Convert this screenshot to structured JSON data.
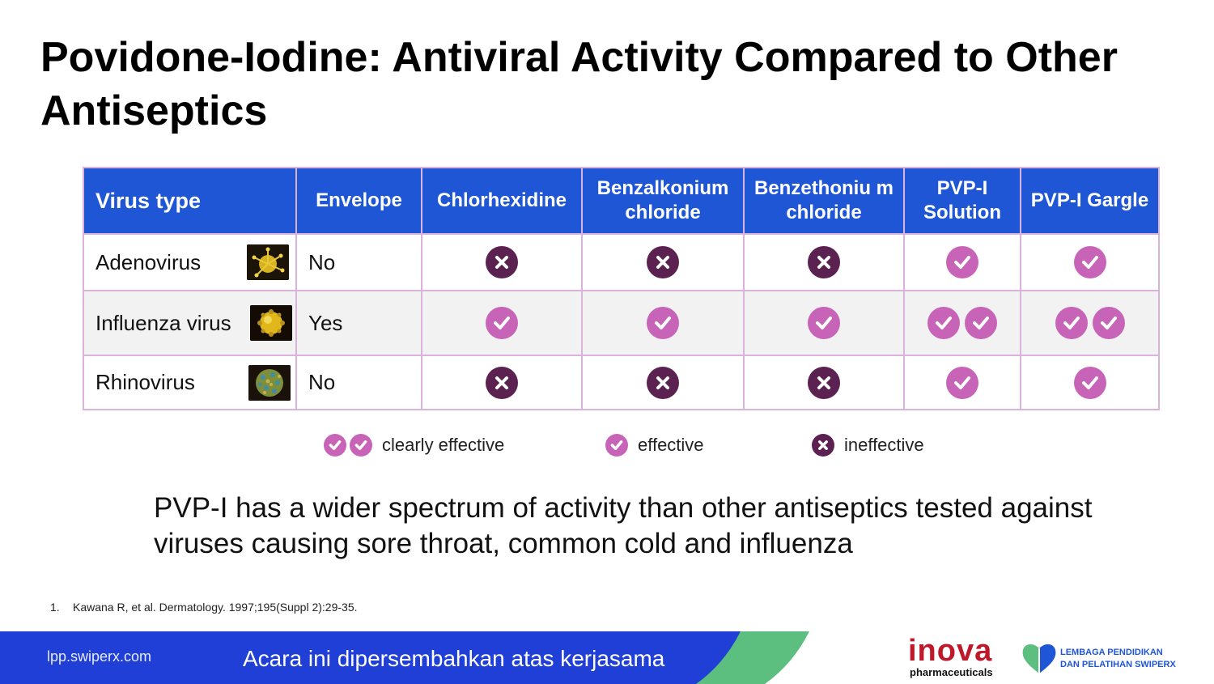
{
  "title": "Povidone-Iodine: Antiviral Activity Compared to Other Antiseptics",
  "table": {
    "headers": [
      "Virus type",
      "Envelope",
      "Chlorhexidine",
      "Benzalkonium chloride",
      "Benzethoniu m chloride",
      "PVP-I Solution",
      "PVP-I Gargle"
    ],
    "rows": [
      {
        "virus": "Adenovirus",
        "image_icon": "adenovirus-image",
        "envelope": "No",
        "results": [
          "ineffective",
          "ineffective",
          "ineffective",
          "effective",
          "effective"
        ]
      },
      {
        "virus": "Influenza virus",
        "image_icon": "influenza-virus-image",
        "envelope": "Yes",
        "results": [
          "effective",
          "effective",
          "effective",
          "clearly effective",
          "clearly effective"
        ]
      },
      {
        "virus": "Rhinovirus",
        "image_icon": "rhinovirus-image",
        "envelope": "No",
        "results": [
          "ineffective",
          "ineffective",
          "ineffective",
          "effective",
          "effective"
        ]
      }
    ]
  },
  "legend": {
    "clearly_effective": "clearly effective",
    "effective": "effective",
    "ineffective": "ineffective"
  },
  "summary": "PVP-I has a wider spectrum of activity than other antiseptics tested against viruses causing sore throat, common cold and influenza",
  "reference": {
    "number": "1.",
    "text": "Kawana R, et al. Dermatology. 1997;195(Suppl 2):29-35."
  },
  "footer": {
    "url": "lpp.swiperx.com",
    "message": "Acara ini dipersembahkan atas kerjasama",
    "inova_logo": "inova",
    "inova_sub": "pharmaceuticals",
    "partner_line1": "LEMBAGA PENDIDIKAN",
    "partner_line2": "DAN PELATIHAN SWIPERX"
  },
  "colors": {
    "header_blue": "#1f56d6",
    "check_purple": "#c764b8",
    "cross_dark": "#5b2150",
    "cell_border": "#d9b3dc",
    "footer_green": "#5cbf7f"
  }
}
